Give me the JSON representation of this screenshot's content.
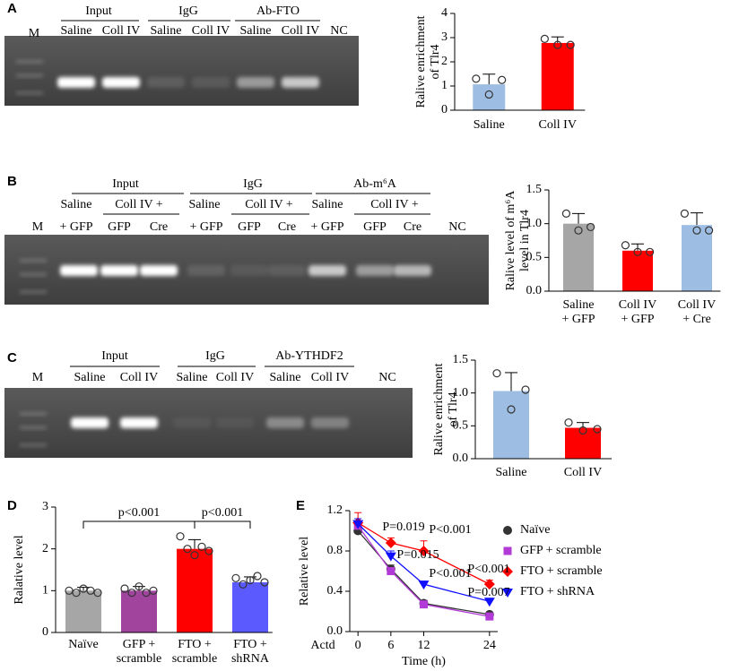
{
  "panel_labels": [
    "A",
    "B",
    "C",
    "D",
    "E"
  ],
  "gels": [
    {
      "marker": "M",
      "groups": [
        "Input",
        "IgG",
        "Ab-FTO"
      ],
      "lanes": [
        "Saline",
        "Coll IV",
        "Saline",
        "Coll IV",
        "Saline",
        "Coll IV"
      ],
      "nc": "NC"
    },
    {
      "marker": "M",
      "groups": [
        "Input",
        "IgG",
        "Ab-m⁶A"
      ],
      "lanes": [
        "Saline",
        "Coll IV +",
        "Saline",
        "Coll IV +",
        "Saline",
        "Coll IV +"
      ],
      "sublanes": [
        "+ GFP",
        "GFP",
        "Cre",
        "+ GFP",
        "GFP",
        "Cre",
        "+ GFP",
        "GFP",
        "Cre"
      ],
      "nc": "NC"
    },
    {
      "marker": "M",
      "groups": [
        "Input",
        "IgG",
        "Ab-YTHDF2"
      ],
      "lanes": [
        "Saline",
        "Coll IV",
        "Saline",
        "Coll IV",
        "Saline",
        "Coll IV"
      ],
      "nc": "NC"
    }
  ],
  "chart_data": [
    {
      "type": "bar",
      "ylabel": [
        "Ralive enrichment",
        "of Tlr4"
      ],
      "categories": [
        "Saline",
        "Coll IV"
      ],
      "values": [
        1.07,
        2.78
      ],
      "errors": [
        0.42,
        0.25
      ],
      "points": [
        [
          1.3,
          0.65,
          1.25
        ],
        [
          2.95,
          2.7,
          2.7
        ]
      ],
      "colors": [
        "#9dbde2",
        "#ff0000"
      ],
      "ylim": [
        0,
        4
      ],
      "yticks": [
        0,
        1,
        2,
        3,
        4
      ]
    },
    {
      "type": "bar",
      "ylabel": [
        "Ralive level of m⁶A",
        "level in Tlr4"
      ],
      "categories": [
        [
          "Saline",
          "+ GFP"
        ],
        [
          "Coll IV",
          "+ GFP"
        ],
        [
          "Coll IV",
          "+ Cre"
        ]
      ],
      "values": [
        1.0,
        0.6,
        0.98
      ],
      "errors": [
        0.15,
        0.1,
        0.18
      ],
      "points": [
        [
          1.15,
          0.9,
          0.95
        ],
        [
          0.68,
          0.58,
          0.58
        ],
        [
          1.15,
          0.9,
          0.9
        ]
      ],
      "colors": [
        "#a6a6a6",
        "#ff0000",
        "#9dbde2"
      ],
      "ylim": [
        0,
        1.5
      ],
      "yticks": [
        {
          "value": 0,
          "label": "0.0"
        },
        0.5,
        {
          "value": 1,
          "label": "1.0"
        },
        1.5
      ]
    },
    {
      "type": "bar",
      "ylabel": [
        "Ralive enrichment",
        "of Tlr4"
      ],
      "categories": [
        "Saline",
        "Coll IV"
      ],
      "values": [
        1.03,
        0.47
      ],
      "errors": [
        0.28,
        0.08
      ],
      "points": [
        [
          1.3,
          0.75,
          1.05
        ],
        [
          0.55,
          0.43,
          0.45
        ]
      ],
      "colors": [
        "#9dbde2",
        "#ff0000"
      ],
      "ylim": [
        0,
        1.5
      ],
      "yticks": [
        {
          "value": 0,
          "label": "0.0"
        },
        0.5,
        {
          "value": 1,
          "label": "1.0"
        },
        1.5
      ]
    },
    {
      "type": "bar",
      "ylabel": [
        "Ralative level"
      ],
      "categories": [
        [
          "Naïve"
        ],
        [
          "GFP +",
          "scramble"
        ],
        [
          "FTO +",
          "scramble"
        ],
        [
          "FTO +",
          "shRNA"
        ]
      ],
      "values": [
        1.0,
        1.0,
        2.0,
        1.2
      ],
      "errors": [
        0.08,
        0.1,
        0.22,
        0.13
      ],
      "points": [
        [
          1.0,
          0.95,
          1.05,
          1.0,
          0.95
        ],
        [
          1.05,
          0.95,
          1.1,
          0.95,
          1.0
        ],
        [
          2.3,
          2.0,
          1.85,
          2.05,
          1.95
        ],
        [
          1.3,
          1.15,
          1.25,
          1.35,
          1.2
        ]
      ],
      "colors": [
        "#a6a6a6",
        "#a0449e",
        "#ff0000",
        "#5a5aff"
      ],
      "ylim": [
        0,
        3
      ],
      "yticks": [
        0,
        1,
        2,
        3
      ],
      "annotations": [
        "p<0.001",
        "p<0.001"
      ]
    },
    {
      "type": "line",
      "xlabel": "Time (h)",
      "ylabel": "Relative level",
      "x_start_label": "Actd",
      "x": [
        0,
        6,
        12,
        24
      ],
      "xlim": [
        -1.5,
        25.5
      ],
      "xticks": [
        0,
        6,
        12,
        24
      ],
      "ylim": [
        0,
        1.2
      ],
      "yticks": [
        {
          "value": 0,
          "label": "0.0"
        },
        0.4,
        0.8,
        1.2
      ],
      "series": [
        {
          "name": "Naïve",
          "color": "#333333",
          "marker": "circle",
          "values": [
            1.0,
            0.62,
            0.28,
            0.17
          ],
          "errors": [
            0.02,
            0.04,
            0.03,
            0.02
          ]
        },
        {
          "name": "GFP + scramble",
          "color": "#b23ad6",
          "marker": "square",
          "values": [
            1.05,
            0.6,
            0.27,
            0.15
          ],
          "errors": [
            0.04,
            0.03,
            0.03,
            0.02
          ]
        },
        {
          "name": "FTO + scramble",
          "color": "#ff0000",
          "marker": "diamond",
          "values": [
            1.08,
            0.88,
            0.8,
            0.47
          ],
          "errors": [
            0.1,
            0.05,
            0.1,
            0.04
          ]
        },
        {
          "name": "FTO + shRNA",
          "color": "#1010ff",
          "marker": "triangle",
          "values": [
            1.07,
            0.75,
            0.47,
            0.3
          ],
          "errors": [
            0.05,
            0.05,
            0.03,
            0.03
          ]
        }
      ],
      "annotations": [
        "P=0.019",
        "P=0.015",
        "P<0.001",
        "P<0.001",
        "P<0.001",
        "P=0.007"
      ]
    }
  ]
}
